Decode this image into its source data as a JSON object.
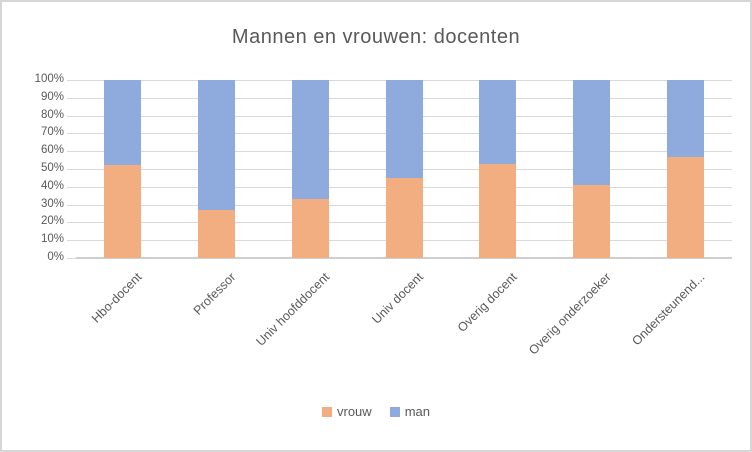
{
  "chart_data": {
    "type": "bar",
    "variant": "stacked-100-percent-column",
    "title": "Mannen en vrouwen: docenten",
    "categories": [
      "Hbo-docent",
      "Professor",
      "Univ hoofddocent",
      "Univ docent",
      "Overig docent",
      "Overig onderzoeker",
      "Ondersteunend..."
    ],
    "series": [
      {
        "name": "vrouw",
        "color": "#F2AE80",
        "values": [
          52,
          27,
          33,
          45,
          53,
          41,
          57
        ]
      },
      {
        "name": "man",
        "color": "#8FAADC",
        "values": [
          48,
          73,
          67,
          55,
          47,
          59,
          43
        ]
      }
    ],
    "xlabel": "",
    "ylabel": "",
    "ylim": [
      0,
      100
    ],
    "yticks": [
      "0%",
      "10%",
      "20%",
      "30%",
      "40%",
      "50%",
      "60%",
      "70%",
      "80%",
      "90%",
      "100%"
    ],
    "grid": true,
    "legend_position": "bottom"
  },
  "colors": {
    "gridline": "#d9d9d9",
    "axis_line": "#cfcfcf",
    "text": "#595959",
    "frame_border": "#d6d6d6",
    "background": "#ffffff"
  }
}
